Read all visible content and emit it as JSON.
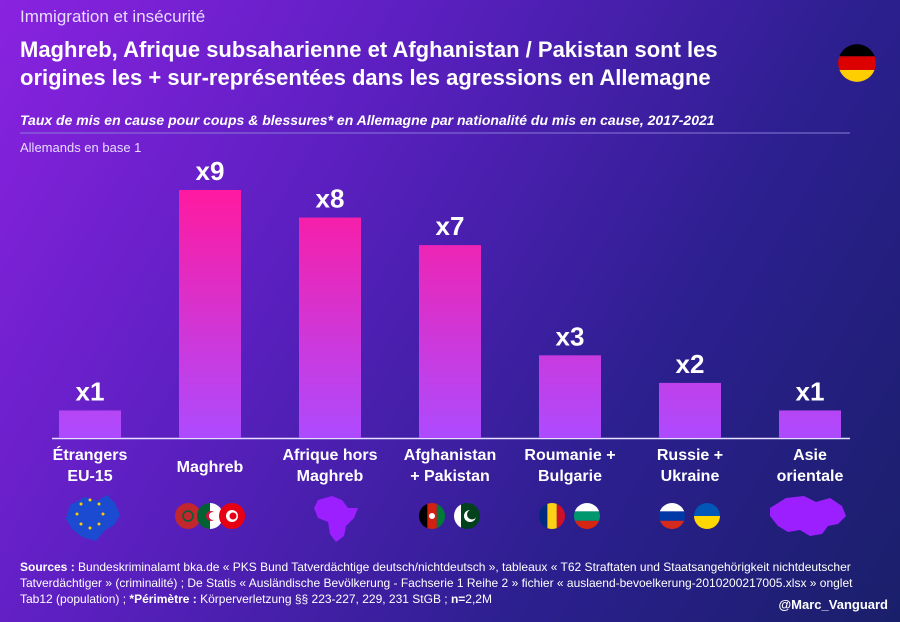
{
  "supertitle": "Immigration et insécurité",
  "title": "Maghreb, Afrique subsaharienne et Afghanistan / Pakistan sont les\norigines les + sur-représentées dans les agressions en Allemagne",
  "handle": "@Marc_Vanguard",
  "sources": {
    "label": "Sources :",
    "text": " Bundeskriminalamt bka.de « PKS Bund Tatverdächtige deutsch/nichtdeutsch », tableaux « T62 Straftaten und Staatsangehörigkeit nichtdeutscher Tatverdächtiger » (criminalité) ; De Statis « Ausländische Bevölkerung - Fachserie 1 Reihe 2 » fichier « auslaend-bevoelkerung-2010200217005.xlsx » onglet Tab12 (population) ; ",
    "perimetre_label": "*Périmètre :",
    "perimetre_text": " Körperverletzung §§ 223-227, 229, 231 StGB ; ",
    "n_label": "n=",
    "n_value": "2,2M"
  },
  "chart_data": {
    "type": "bar",
    "subtitle": "Taux de mis en cause pour coups & blessures* en Allemagne par nationalité du mis en cause, 2017-2021",
    "note": "Allemands en base 1",
    "categories": [
      "Étrangers\nEU-15",
      "Maghreb",
      "Afrique hors\nMaghreb",
      "Afghanistan\n+ Pakistan",
      "Roumanie +\nBulgarie",
      "Russie +\nUkraine",
      "Asie\norientale"
    ],
    "values": [
      1,
      9,
      8,
      7,
      3,
      2,
      1
    ],
    "value_labels": [
      "x1",
      "x9",
      "x8",
      "x7",
      "x3",
      "x2",
      "x1"
    ],
    "ylim": [
      0,
      9
    ],
    "color": [
      "#ff1aa0",
      "#ad4bff"
    ]
  }
}
